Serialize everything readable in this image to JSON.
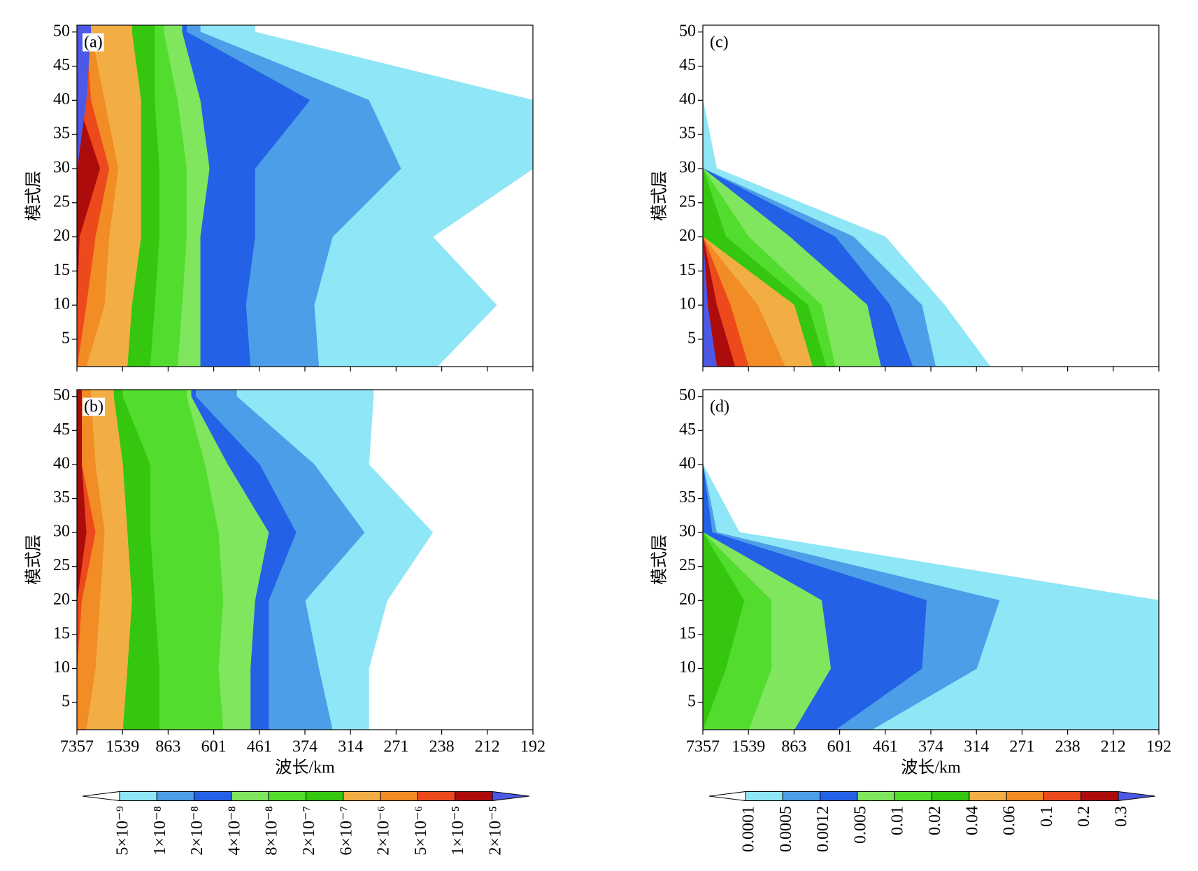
{
  "chart_data": [
    {
      "type": "contour",
      "label": "(a)",
      "ylabel": "模式层",
      "xlim": [
        0,
        10
      ],
      "xticks": [
        0,
        1,
        2,
        3,
        4,
        5,
        6,
        7,
        8,
        9,
        10
      ],
      "ylim": [
        1,
        51
      ],
      "yticks": [
        5,
        10,
        15,
        20,
        25,
        30,
        35,
        40,
        45,
        50
      ],
      "colorbar": 0,
      "levels_y": [
        1,
        10,
        20,
        30,
        40,
        50
      ],
      "contours": [
        {
          "level": 1,
          "x": [
            7.9,
            9.2,
            7.8,
            10,
            10,
            3.9
          ]
        },
        {
          "level": 2,
          "x": [
            5.3,
            5.2,
            5.6,
            7.1,
            6.4,
            2.7
          ]
        },
        {
          "level": 3,
          "x": [
            3.8,
            3.7,
            3.9,
            3.9,
            5.1,
            2.4
          ]
        },
        {
          "level": 4,
          "x": [
            2.7,
            2.7,
            2.7,
            2.9,
            2.7,
            2.3
          ]
        },
        {
          "level": 5,
          "x": [
            2.2,
            2.3,
            2.4,
            2.4,
            2.2,
            1.9
          ]
        },
        {
          "level": 6,
          "x": [
            1.6,
            1.7,
            1.8,
            1.8,
            1.7,
            1.7
          ]
        },
        {
          "level": 7,
          "x": [
            1.1,
            1.2,
            1.4,
            1.4,
            1.4,
            1.2
          ]
        },
        {
          "level": 8,
          "x": [
            0.2,
            0.6,
            0.7,
            0.9,
            0.6,
            0.3
          ]
        },
        {
          "level": 9,
          "x": [
            0,
            0.2,
            0.4,
            0.7,
            0.3,
            0.2
          ]
        },
        {
          "level": 10,
          "x": [
            0,
            0,
            0.05,
            0.5,
            0,
            0.1
          ]
        },
        {
          "level": 11,
          "x": [
            0,
            0,
            0,
            0,
            0.2,
            0.3
          ]
        }
      ]
    },
    {
      "type": "contour",
      "label": "(b)",
      "ylabel": "模式层",
      "xlabel": "波长/km",
      "xlim": [
        0,
        10
      ],
      "xticks": [
        {
          "value": 0,
          "label": "7357"
        },
        {
          "value": 1,
          "label": "1539"
        },
        {
          "value": 2,
          "label": "863"
        },
        {
          "value": 3,
          "label": "601"
        },
        {
          "value": 4,
          "label": "461"
        },
        {
          "value": 5,
          "label": "374"
        },
        {
          "value": 6,
          "label": "314"
        },
        {
          "value": 7,
          "label": "271"
        },
        {
          "value": 8,
          "label": "238"
        },
        {
          "value": 9,
          "label": "212"
        },
        {
          "value": 10,
          "label": "192"
        }
      ],
      "ylim": [
        1,
        51
      ],
      "yticks": [
        5,
        10,
        15,
        20,
        25,
        30,
        35,
        40,
        45,
        50
      ],
      "colorbar": 0,
      "levels_y": [
        1,
        10,
        20,
        30,
        40,
        50
      ],
      "contours": [
        {
          "level": 1,
          "x": [
            6.4,
            6.4,
            6.8,
            7.8,
            6.4,
            6.5
          ]
        },
        {
          "level": 2,
          "x": [
            5.6,
            5.3,
            5.0,
            6.3,
            5.2,
            3.5
          ]
        },
        {
          "level": 3,
          "x": [
            4.2,
            4.2,
            4.2,
            4.8,
            4.0,
            2.6
          ]
        },
        {
          "level": 4,
          "x": [
            3.8,
            3.8,
            3.9,
            4.2,
            3.3,
            2.5
          ]
        },
        {
          "level": 5,
          "x": [
            3.2,
            3.1,
            3.2,
            3.1,
            2.8,
            2.4
          ]
        },
        {
          "level": 6,
          "x": [
            1.8,
            1.8,
            1.7,
            1.6,
            1.6,
            1.0
          ]
        },
        {
          "level": 7,
          "x": [
            1.0,
            1.1,
            1.2,
            1.1,
            1.0,
            0.8
          ]
        },
        {
          "level": 8,
          "x": [
            0.2,
            0.4,
            0.5,
            0.6,
            0.4,
            0.3
          ]
        },
        {
          "level": 9,
          "x": [
            0,
            0,
            0.1,
            0.4,
            0.1,
            0.1
          ]
        },
        {
          "level": 10,
          "x": [
            0,
            0,
            0,
            0.2,
            0.1,
            0.1
          ]
        }
      ]
    },
    {
      "type": "contour",
      "label": "(c)",
      "ylabel": "模式层",
      "xlim": [
        0,
        10
      ],
      "xticks": [
        0,
        1,
        2,
        3,
        4,
        5,
        6,
        7,
        8,
        9,
        10
      ],
      "ylim": [
        1,
        51
      ],
      "yticks": [
        5,
        10,
        15,
        20,
        25,
        30,
        35,
        40,
        45,
        50
      ],
      "colorbar": 1,
      "levels_y": [
        1,
        10,
        20,
        30,
        40,
        50
      ],
      "contours": [
        {
          "level": 1,
          "x": [
            6.3,
            5.3,
            4.0,
            0.3,
            0,
            0
          ]
        },
        {
          "level": 2,
          "x": [
            5.1,
            4.8,
            3.3,
            0,
            0,
            0
          ]
        },
        {
          "level": 3,
          "x": [
            4.6,
            4.1,
            2.9,
            0,
            0,
            0
          ]
        },
        {
          "level": 4,
          "x": [
            3.9,
            3.6,
            1.9,
            0,
            0,
            0
          ]
        },
        {
          "level": 5,
          "x": [
            2.9,
            2.6,
            1.0,
            0,
            0,
            0
          ]
        },
        {
          "level": 6,
          "x": [
            2.7,
            2.3,
            0.5,
            0,
            0,
            0
          ]
        },
        {
          "level": 7,
          "x": [
            2.4,
            2.0,
            0,
            0,
            0,
            0
          ]
        },
        {
          "level": 8,
          "x": [
            1.8,
            1.2,
            0,
            0,
            0,
            0
          ]
        },
        {
          "level": 9,
          "x": [
            1.0,
            0.6,
            0,
            0,
            0,
            0
          ]
        },
        {
          "level": 10,
          "x": [
            0.7,
            0.3,
            0,
            0,
            0,
            0
          ]
        },
        {
          "level": 11,
          "x": [
            0.3,
            0.1,
            0,
            0,
            0,
            0
          ]
        }
      ]
    },
    {
      "type": "contour",
      "label": "(d)",
      "ylabel": "模式层",
      "xlabel": "波长/km",
      "xlim": [
        0,
        10
      ],
      "xticks": [
        {
          "value": 0,
          "label": "7357"
        },
        {
          "value": 1,
          "label": "1539"
        },
        {
          "value": 2,
          "label": "863"
        },
        {
          "value": 3,
          "label": "601"
        },
        {
          "value": 4,
          "label": "461"
        },
        {
          "value": 5,
          "label": "374"
        },
        {
          "value": 6,
          "label": "314"
        },
        {
          "value": 7,
          "label": "271"
        },
        {
          "value": 8,
          "label": "238"
        },
        {
          "value": 9,
          "label": "212"
        },
        {
          "value": 10,
          "label": "192"
        }
      ],
      "ylim": [
        1,
        51
      ],
      "yticks": [
        5,
        10,
        15,
        20,
        25,
        30,
        35,
        40,
        45,
        50
      ],
      "colorbar": 1,
      "levels_y": [
        1,
        10,
        20,
        30,
        40,
        50
      ],
      "contours": [
        {
          "level": 1,
          "x": [
            10,
            10,
            10,
            0.8,
            0,
            0
          ]
        },
        {
          "level": 2,
          "x": [
            3.7,
            6.0,
            6.5,
            0.3,
            0,
            0
          ]
        },
        {
          "level": 3,
          "x": [
            2.9,
            4.8,
            4.9,
            0.2,
            0,
            0
          ]
        },
        {
          "level": 4,
          "x": [
            2.0,
            2.8,
            2.6,
            0,
            0,
            0
          ]
        },
        {
          "level": 5,
          "x": [
            1.0,
            1.5,
            1.5,
            0,
            0,
            0
          ]
        },
        {
          "level": 6,
          "x": [
            0,
            0.5,
            0.9,
            0,
            0,
            0
          ]
        }
      ]
    }
  ],
  "colorbars": [
    {
      "colors": [
        "#ffffff",
        "#8fe6f7",
        "#4c9ee8",
        "#2361e6",
        "#7fe65e",
        "#52dd2e",
        "#35c70f",
        "#f2ae45",
        "#f28c24",
        "#ec4a1c",
        "#ad0c0c",
        "#4c59e6"
      ],
      "labels": [
        "5×10⁻⁹",
        "1×10⁻⁸",
        "2×10⁻⁸",
        "4×10⁻⁸",
        "8×10⁻⁸",
        "2×10⁻⁷",
        "6×10⁻⁷",
        "2×10⁻⁶",
        "5×10⁻⁶",
        "1×10⁻⁵",
        "2×10⁻⁵"
      ]
    },
    {
      "colors": [
        "#ffffff",
        "#8fe6f7",
        "#4c9ee8",
        "#2361e6",
        "#7fe65e",
        "#52dd2e",
        "#35c70f",
        "#f2ae45",
        "#f28c24",
        "#ec4a1c",
        "#ad0c0c",
        "#4c59e6"
      ],
      "labels": [
        "0.0001",
        "0.0005",
        "0.0012",
        "0.005",
        "0.01",
        "0.02",
        "0.04",
        "0.06",
        "0.1",
        "0.2",
        "0.3"
      ]
    }
  ]
}
